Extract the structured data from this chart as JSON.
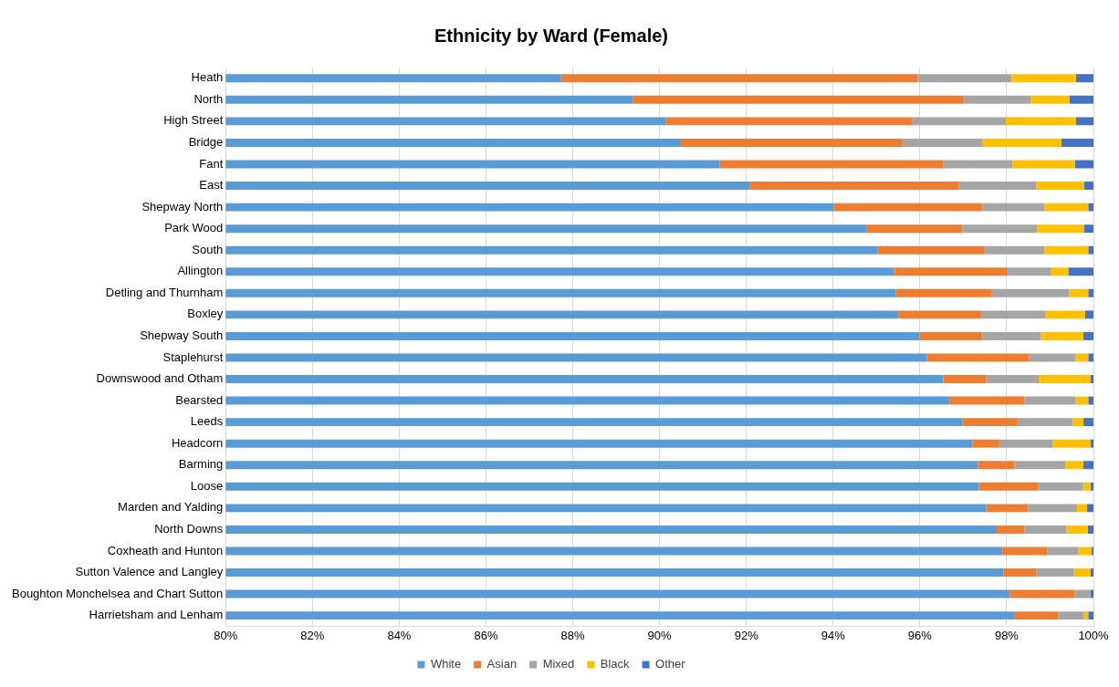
{
  "chart_data": {
    "type": "bar",
    "orientation": "horizontal",
    "stacked": true,
    "title": "Ethnicity by Ward (Female)",
    "categories": [
      "Heath",
      "North",
      "High Street",
      "Bridge",
      "Fant",
      "East",
      "Shepway North",
      "Park Wood",
      "South",
      "Allington",
      "Detling and Thurnham",
      "Boxley",
      "Shepway South",
      "Staplehurst",
      "Downswood and Otham",
      "Bearsted",
      "Leeds",
      "Headcorn",
      "Barming",
      "Loose",
      "Marden and Yalding",
      "North Downs",
      "Coxheath and Hunton",
      "Sutton Valence and Langley",
      "Boughton Monchelsea and Chart Sutton",
      "Harrietsham and Lenham"
    ],
    "series": [
      {
        "name": "White",
        "color": "#5b9bd5",
        "values": [
          87.73,
          89.38,
          90.15,
          90.49,
          91.39,
          92.07,
          94.01,
          94.78,
          95.02,
          95.4,
          95.44,
          95.5,
          95.99,
          96.16,
          96.54,
          96.68,
          96.98,
          97.21,
          97.34,
          97.36,
          97.53,
          97.77,
          97.9,
          97.93,
          98.07,
          98.17
        ]
      },
      {
        "name": "Asian",
        "color": "#ed7d31",
        "base": [
          87.73,
          89.38,
          90.15,
          90.49,
          91.39,
          92.07,
          94.01,
          94.78,
          95.02,
          95.4,
          95.44,
          95.5,
          95.99,
          96.16,
          96.54,
          96.68,
          96.98,
          97.21,
          97.34,
          97.36,
          97.53,
          97.77,
          97.9,
          97.93,
          98.07,
          98.17
        ],
        "values": [
          8.22,
          7.64,
          5.68,
          5.11,
          5.14,
          4.83,
          3.43,
          2.2,
          2.47,
          2.62,
          2.22,
          1.91,
          1.45,
          2.35,
          0.99,
          1.73,
          1.27,
          0.62,
          0.84,
          1.37,
          0.96,
          0.64,
          1.04,
          0.76,
          1.5,
          1.02
        ]
      },
      {
        "name": "Mixed",
        "color": "#a5a5a5",
        "base": [
          95.95,
          97.02,
          95.83,
          95.6,
          96.53,
          96.9,
          97.44,
          96.98,
          97.49,
          98.02,
          97.66,
          97.41,
          97.44,
          98.51,
          97.53,
          98.41,
          98.25,
          97.83,
          98.18,
          98.73,
          98.49,
          98.41,
          98.94,
          98.69,
          99.57,
          99.19
        ],
        "values": [
          2.16,
          1.53,
          2.15,
          1.84,
          1.6,
          1.78,
          1.43,
          1.72,
          1.38,
          1.01,
          1.78,
          1.49,
          1.35,
          1.08,
          1.21,
          1.18,
          1.27,
          1.23,
          1.17,
          1.03,
          1.13,
          0.97,
          0.71,
          0.86,
          0.36,
          0.58
        ]
      },
      {
        "name": "Black",
        "color": "#ffc000",
        "base": [
          98.11,
          98.55,
          97.98,
          97.44,
          98.13,
          98.68,
          98.87,
          98.7,
          98.87,
          99.03,
          99.44,
          98.9,
          98.79,
          99.59,
          98.74,
          99.59,
          99.52,
          99.06,
          99.35,
          99.76,
          99.62,
          99.38,
          99.65,
          99.55,
          null,
          99.77
        ],
        "values": [
          1.49,
          0.9,
          1.62,
          1.82,
          1.44,
          1.11,
          1.01,
          1.09,
          1.01,
          0.39,
          0.44,
          0.91,
          0.98,
          0.29,
          1.19,
          0.29,
          0.25,
          0.87,
          0.42,
          0.17,
          0.23,
          0.49,
          0.31,
          0.38,
          null,
          0.11
        ]
      },
      {
        "name": "Other",
        "color": "#4472c4",
        "base": [
          99.6,
          99.45,
          99.6,
          99.26,
          99.57,
          99.79,
          99.88,
          99.79,
          99.88,
          99.42,
          99.88,
          99.81,
          99.77,
          99.88,
          99.93,
          99.88,
          99.77,
          99.93,
          99.77,
          99.93,
          99.85,
          99.87,
          99.96,
          99.93,
          99.93,
          99.88
        ],
        "values": [
          0.4,
          0.55,
          0.4,
          0.74,
          0.43,
          0.21,
          0.12,
          0.21,
          0.12,
          0.58,
          0.12,
          0.19,
          0.23,
          0.12,
          0.07,
          0.12,
          0.23,
          0.07,
          0.23,
          0.07,
          0.15,
          0.13,
          0.04,
          0.07,
          0.07,
          0.12
        ]
      }
    ],
    "xlim": [
      80,
      100
    ],
    "xticks": [
      {
        "value": 80,
        "label": "80%"
      },
      {
        "value": 82,
        "label": "82%"
      },
      {
        "value": 84,
        "label": "84%"
      },
      {
        "value": 86,
        "label": "86%"
      },
      {
        "value": 88,
        "label": "88%"
      },
      {
        "value": 90,
        "label": "90%"
      },
      {
        "value": 92,
        "label": "92%"
      },
      {
        "value": 94,
        "label": "94%"
      },
      {
        "value": 96,
        "label": "96%"
      },
      {
        "value": 98,
        "label": "98%"
      },
      {
        "value": 100,
        "label": "100%"
      }
    ],
    "grid": "x",
    "legend": "bottom"
  }
}
